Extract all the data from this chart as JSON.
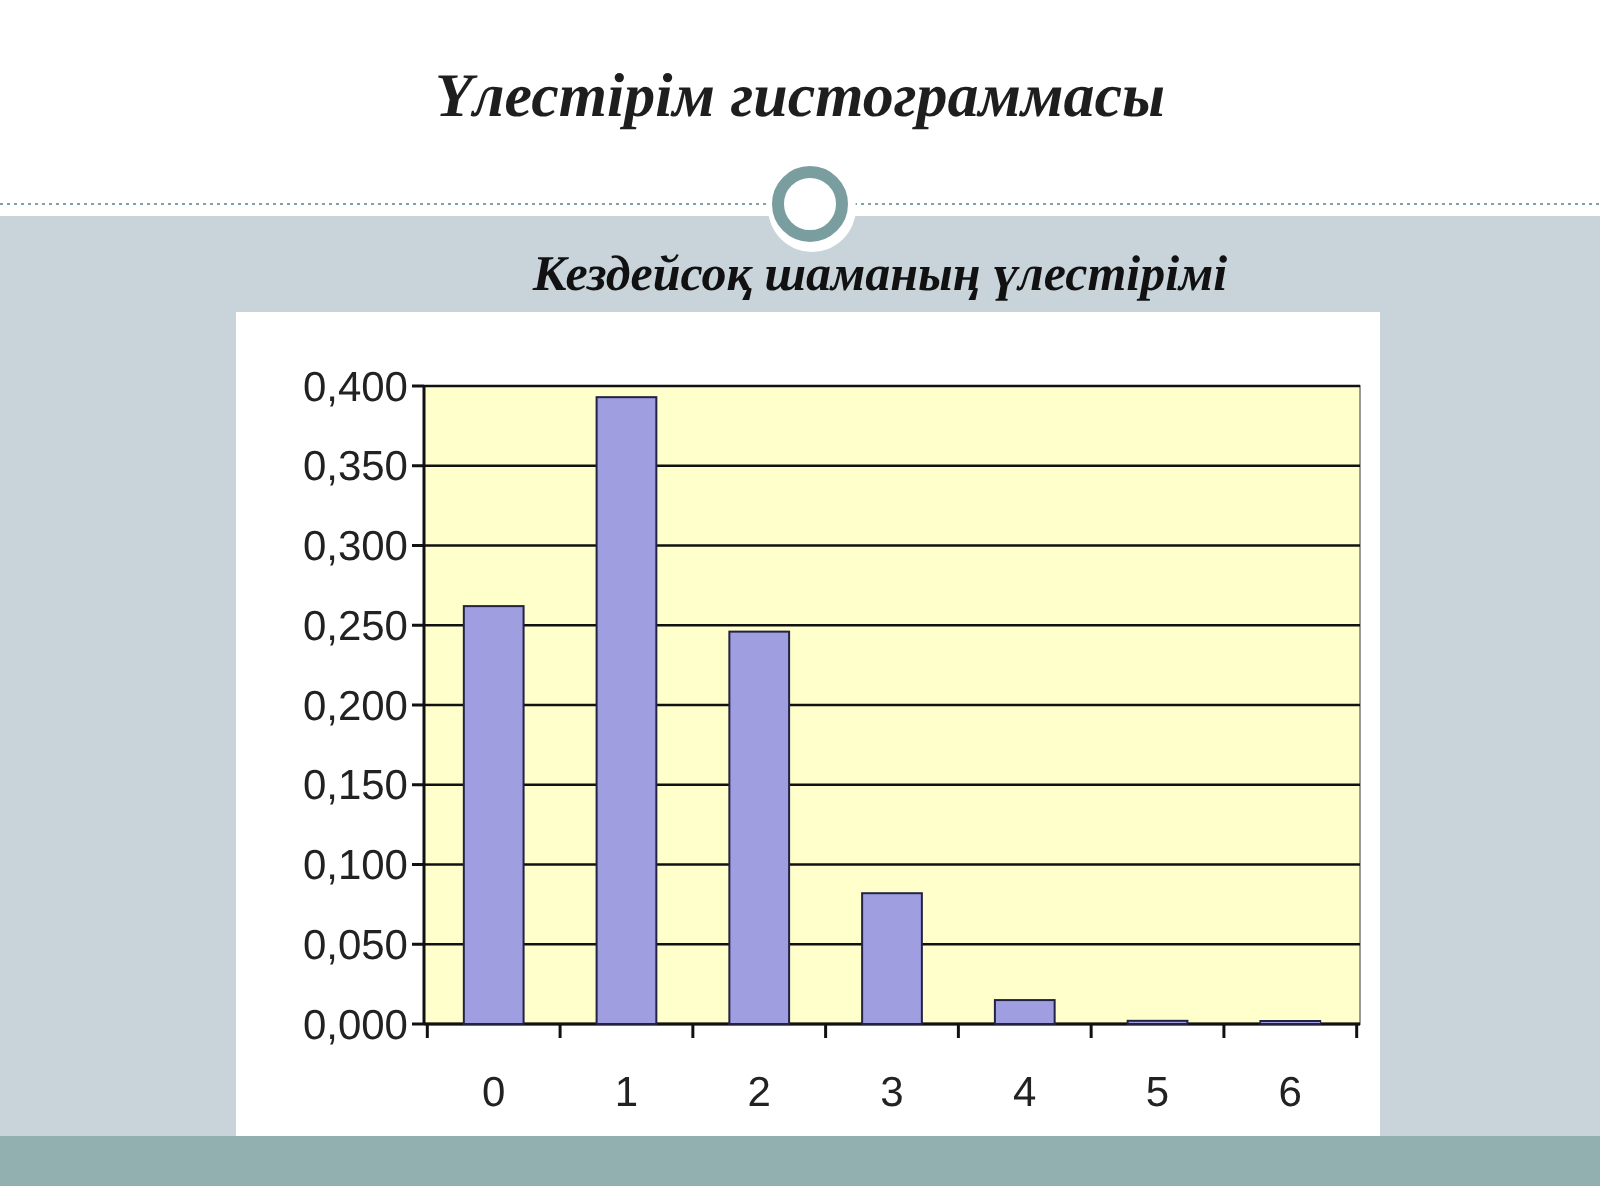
{
  "chart_data": {
    "type": "bar",
    "title": "Үлестірім гистограммасы",
    "subtitle": "Кездейсоқ шаманың үлестірімі",
    "categories": [
      "0",
      "1",
      "2",
      "3",
      "4",
      "5",
      "6"
    ],
    "values": [
      0.262,
      0.393,
      0.246,
      0.082,
      0.015,
      0.002,
      0.001
    ],
    "color": "#9e9ee0",
    "ylim": [
      0,
      0.4
    ],
    "yticks": [
      {
        "value": 0,
        "label": "0,000"
      },
      {
        "value": 0.05,
        "label": "0,050"
      },
      {
        "value": 0.1,
        "label": "0,100"
      },
      {
        "value": 0.15,
        "label": "0,150"
      },
      {
        "value": 0.2,
        "label": "0,200"
      },
      {
        "value": 0.25,
        "label": "0,250"
      },
      {
        "value": 0.3,
        "label": "0,300"
      },
      {
        "value": 0.35,
        "label": "0,350"
      },
      {
        "value": 0.4,
        "label": "0,400"
      }
    ],
    "grid": "y"
  }
}
